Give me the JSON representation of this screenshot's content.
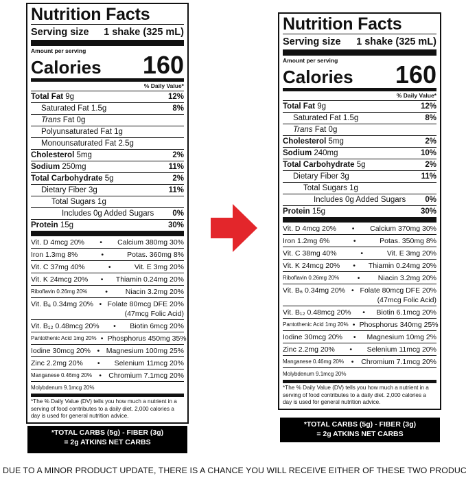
{
  "left": {
    "title": "Nutrition Facts",
    "serving_label": "Serving size",
    "serving_value": "1 shake (325 mL)",
    "amount_per_serving": "Amount per serving",
    "calories_label": "Calories",
    "calories_value": "160",
    "dv_header": "% Daily Value*",
    "nutrients": [
      {
        "label": "Total Fat",
        "amount": "9g",
        "pct": "12%"
      },
      {
        "label": "Saturated Fat",
        "amount": "1.5g",
        "pct": "8%"
      },
      {
        "label": "Trans",
        "amount": "Fat 0g",
        "pct": ""
      },
      {
        "label": "Polyunsaturated Fat",
        "amount": "1g",
        "pct": ""
      },
      {
        "label": "Monounsaturated Fat",
        "amount": "2.5g",
        "pct": ""
      },
      {
        "label": "Cholesterol",
        "amount": "5mg",
        "pct": "2%"
      },
      {
        "label": "Sodium",
        "amount": "250mg",
        "pct": "11%"
      },
      {
        "label": "Total Carbohydrate",
        "amount": "5g",
        "pct": "2%"
      },
      {
        "label": "Dietary Fiber",
        "amount": "3g",
        "pct": "11%"
      },
      {
        "label": "Total Sugars",
        "amount": "1g",
        "pct": ""
      },
      {
        "label": "Includes 0g Added Sugars",
        "amount": "",
        "pct": "0%"
      },
      {
        "label": "Protein",
        "amount": "15g",
        "pct": "30%"
      }
    ],
    "vitamins": [
      {
        "left": "Vit. D 4mcg 20%",
        "right": "Calcium 380mg 30%"
      },
      {
        "left": "Iron 1.3mg 8%",
        "right": "Potas. 360mg 8%"
      },
      {
        "left": "Vit. C 37mg 40%",
        "right": "Vit. E 3mg 20%"
      },
      {
        "left": "Vit. K 24mcg 20%",
        "right": "Thiamin 0.24mg 20%"
      },
      {
        "left": "Riboflavin 0.26mg 20%",
        "right": "Niacin 3.2mg 20%"
      },
      {
        "left": "Vit. B₆ 0.34mg 20%",
        "right": "Folate 80mcg DFE 20%",
        "right2": "(47mcg Folic Acid)"
      },
      {
        "left": "Vit. B₁₂ 0.48mcg 20%",
        "right": "Biotin 6mcg 20%"
      },
      {
        "left": "Pantothenic Acid 1mg 20%",
        "right": "Phosphorus 450mg 35%"
      },
      {
        "left": "Iodine 30mcg 20%",
        "right": "Magnesium 100mg 25%"
      },
      {
        "left": "Zinc 2.2mg 20%",
        "right": "Selenium 11mcg 20%"
      },
      {
        "left": "Manganese 0.46mg 20%",
        "right": "Chromium 7.1mcg 20%"
      },
      {
        "left": "Molybdenum 9.1mcg 20%",
        "right": ""
      }
    ],
    "footnote": "*The % Daily Value (DV) tells you how much a nutrient in a serving of food contributes to a daily diet. 2,000 calories a day is used for general nutrition advice.",
    "carbs_line1": "*TOTAL CARBS (5g) - FIBER (3g)",
    "carbs_line2": "= 2g ATKINS NET CARBS"
  },
  "right": {
    "title": "Nutrition Facts",
    "serving_label": "Serving size",
    "serving_value": "1 shake (325 mL)",
    "amount_per_serving": "Amount per serving",
    "calories_label": "Calories",
    "calories_value": "160",
    "dv_header": "% Daily Value*",
    "nutrients": [
      {
        "label": "Total Fat",
        "amount": "9g",
        "pct": "12%"
      },
      {
        "label": "Saturated Fat",
        "amount": "1.5g",
        "pct": "8%"
      },
      {
        "label": "Trans",
        "amount": "Fat 0g",
        "pct": ""
      },
      {
        "label": "Cholesterol",
        "amount": "5mg",
        "pct": "2%"
      },
      {
        "label": "Sodium",
        "amount": "240mg",
        "pct": "10%"
      },
      {
        "label": "Total Carbohydrate",
        "amount": "5g",
        "pct": "2%"
      },
      {
        "label": "Dietary Fiber",
        "amount": "3g",
        "pct": "11%"
      },
      {
        "label": "Total Sugars",
        "amount": "1g",
        "pct": ""
      },
      {
        "label": "Includes 0g Added Sugars",
        "amount": "",
        "pct": "0%"
      },
      {
        "label": "Protein",
        "amount": "15g",
        "pct": "30%"
      }
    ],
    "vitamins": [
      {
        "left": "Vit. D 4mcg 20%",
        "right": "Calcium 370mg 30%"
      },
      {
        "left": "Iron 1.2mg 6%",
        "right": "Potas. 350mg 8%"
      },
      {
        "left": "Vit. C 38mg 40%",
        "right": "Vit. E 3mg 20%"
      },
      {
        "left": "Vit. K 24mcg 20%",
        "right": "Thiamin 0.24mg 20%"
      },
      {
        "left": "Riboflavin 0.26mg 20%",
        "right": "Niacin 3.2mg 20%"
      },
      {
        "left": "Vit. B₆ 0.34mg 20%",
        "right": "Folate 80mcg DFE 20%",
        "right2": "(47mcg Folic Acid)"
      },
      {
        "left": "Vit. B₁₂ 0.48mcg 20%",
        "right": "Biotin 6.1mcg 20%"
      },
      {
        "left": "Pantothenic Acid 1mg 20%",
        "right": "Phosphorus 340mg 25%"
      },
      {
        "left": "Iodine 30mcg 20%",
        "right": "Magnesium 10mg 2%"
      },
      {
        "left": "Zinc 2.2mg 20%",
        "right": "Selenium 11mcg 20%"
      },
      {
        "left": "Manganese 0.46mg 20%",
        "right": "Chromium 7.1mcg 20%"
      },
      {
        "left": "Molybdenum 9.1mcg 20%",
        "right": ""
      }
    ],
    "footnote": "*The % Daily Value (DV) tells you how much a nutrient in a serving of food contributes to a daily diet. 2,000 calories a day is used for general nutrition advice.",
    "carbs_line1": "*TOTAL CARBS (5g) - FIBER (3g)",
    "carbs_line2": "= 2g ATKINS NET CARBS"
  },
  "arrow": {
    "color": "#e3262b",
    "icon": "right-arrow-icon"
  },
  "bottom_notice": "DUE TO A MINOR PRODUCT UPDATE, THERE IS A CHANCE YOU WILL RECEIVE EITHER OF THESE TWO PRODUCTS"
}
